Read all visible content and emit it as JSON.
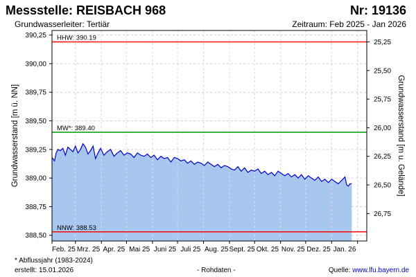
{
  "header": {
    "title": "Messstelle: REISBACH 968",
    "number": "Nr: 19136",
    "subtitle": "Grundwasserleiter: Tertiär",
    "period": "Zeitraum: Feb 2025 - Jan 2026"
  },
  "footer": {
    "note": "* Abflussjahr (1983-2024)",
    "created": "erstellt:  15.01.2026",
    "raw": "- Rohdaten -",
    "source_label": "Quelle: ",
    "source_link": "www.lfu.bayern.de"
  },
  "colors": {
    "fill": "#a7c7ee",
    "line": "#0000cc",
    "hhw": "#ff0000",
    "mw": "#009900",
    "nnw": "#ff0000",
    "grid": "#cfcfcf"
  },
  "chart_data": {
    "type": "area",
    "title": "",
    "xlabel": "",
    "ylabel": "Grundwasserstand [m ü. NN]",
    "ylabel_right": "Grundwasserstand [m u. Gelände]",
    "ylim": [
      388.45,
      390.29
    ],
    "y_ticks": [
      "390,25",
      "390,00",
      "389,75",
      "389,50",
      "389,25",
      "389,00",
      "388,75",
      "388,50"
    ],
    "y_tick_values": [
      390.25,
      390.0,
      389.75,
      389.5,
      389.25,
      389.0,
      388.75,
      388.5
    ],
    "y_right_ticks": [
      "25,25",
      "25,50",
      "25,75",
      "26,00",
      "26,25",
      "26,50",
      "26,75"
    ],
    "y_right_tick_values": [
      25.25,
      25.5,
      25.75,
      26.0,
      26.25,
      26.5,
      26.75
    ],
    "y_right_reference": 415.44,
    "x_labels": [
      "Feb. 25",
      "Mrz. 25",
      "Apr. 25",
      "Mai 25",
      "Juni 25",
      "Juli 25",
      "Aug. 25",
      "Sept. 25",
      "Okt. 25",
      "Nov. 25",
      "Dez. 25",
      "Jan. 26"
    ],
    "x_range_days": [
      0,
      376
    ],
    "x_label_days": [
      0,
      28,
      59,
      89,
      120,
      150,
      181,
      212,
      242,
      273,
      303,
      334,
      365
    ],
    "reference_lines": [
      {
        "label": "HHW: 390.19",
        "value": 390.19,
        "color": "#ff0000"
      },
      {
        "label": "MW*: 389.40",
        "value": 389.4,
        "color": "#009900"
      },
      {
        "label": "NNW: 388.53",
        "value": 388.53,
        "color": "#ff0000"
      }
    ],
    "series": [
      {
        "x": [
          0,
          3,
          5,
          7,
          10,
          13,
          16,
          19,
          22,
          25,
          28,
          31,
          34,
          37,
          40,
          43,
          46,
          49,
          52,
          55,
          58,
          62,
          66,
          70,
          74,
          78,
          82,
          86,
          90,
          94,
          98,
          102,
          106,
          110,
          114,
          118,
          122,
          126,
          130,
          134,
          138,
          142,
          146,
          150,
          154,
          158,
          162,
          166,
          170,
          174,
          178,
          182,
          186,
          190,
          194,
          198,
          202,
          206,
          210,
          214,
          218,
          222,
          226,
          230,
          234,
          238,
          242,
          246,
          250,
          254,
          258,
          262,
          266,
          270,
          274,
          278,
          282,
          286,
          290,
          294,
          298,
          302,
          306,
          310,
          314,
          318,
          322,
          326,
          330,
          334,
          338,
          342,
          346,
          350,
          352,
          354,
          356,
          358
        ],
        "values": [
          389.18,
          389.15,
          389.22,
          389.25,
          389.24,
          389.26,
          389.2,
          389.27,
          389.25,
          389.23,
          389.28,
          389.22,
          389.25,
          389.3,
          389.27,
          389.21,
          389.24,
          389.28,
          389.17,
          389.22,
          389.26,
          389.2,
          389.23,
          389.25,
          389.19,
          389.22,
          389.24,
          389.2,
          389.22,
          389.21,
          389.18,
          389.22,
          389.2,
          389.19,
          389.21,
          389.18,
          389.2,
          389.16,
          389.19,
          389.17,
          389.18,
          389.14,
          389.18,
          389.17,
          389.15,
          389.16,
          389.13,
          389.15,
          389.12,
          389.14,
          389.13,
          389.11,
          389.14,
          389.12,
          389.1,
          389.12,
          389.09,
          389.11,
          389.1,
          389.08,
          389.07,
          389.1,
          389.06,
          389.09,
          389.05,
          389.07,
          389.06,
          389.08,
          389.04,
          389.06,
          389.03,
          389.05,
          389.02,
          389.06,
          389.04,
          389.02,
          389.04,
          389.01,
          389.03,
          389.0,
          389.03,
          388.99,
          389.02,
          389.0,
          388.98,
          389.01,
          388.97,
          388.99,
          388.96,
          388.99,
          388.97,
          388.95,
          388.98,
          389.01,
          388.94,
          388.93,
          388.95,
          388.95
        ]
      }
    ]
  }
}
